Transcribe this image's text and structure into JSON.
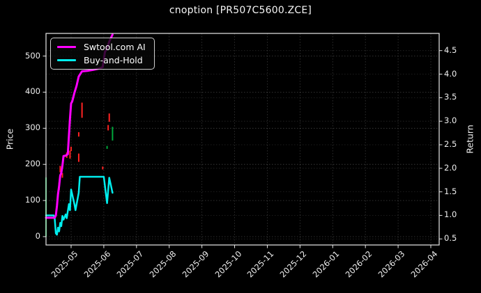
{
  "window": {
    "title": "cnoption [PR507C5600.ZCE]"
  },
  "chart_data": {
    "type": "line",
    "title": "cnoption [PR507C5600.ZCE]",
    "background_color": "#000000",
    "text_color": "#f2f2f2",
    "grid": true,
    "legend_position": "upper-left",
    "x_axis": {
      "tick_labels": [
        "2025-05",
        "2025-06",
        "2025-07",
        "2025-08",
        "2025-09",
        "2025-10",
        "2025-11",
        "2025-12",
        "2026-01",
        "2026-02",
        "2026-03",
        "2026-04"
      ],
      "tick_rotation_deg": 45
    },
    "left_axis": {
      "label": "Price",
      "ticks": [
        0,
        100,
        200,
        300,
        400,
        500
      ],
      "range": [
        -23,
        563
      ]
    },
    "right_axis": {
      "label": "Return",
      "tick_labels": [
        "0.5",
        "1.0",
        "1.5",
        "2.0",
        "2.5",
        "3.0",
        "3.5",
        "4.0",
        "4.5"
      ],
      "range": [
        0.37,
        4.87
      ]
    },
    "series": [
      {
        "name": "Swtool.com AI",
        "color": "#ff00ff",
        "axis": "return",
        "line_width": 3,
        "points": [
          [
            "2025-04-08",
            0.95
          ],
          [
            "2025-04-16",
            0.95
          ],
          [
            "2025-04-17",
            1.0
          ],
          [
            "2025-04-18",
            1.2
          ],
          [
            "2025-04-19",
            1.45
          ],
          [
            "2025-04-20",
            1.62
          ],
          [
            "2025-04-21",
            1.85
          ],
          [
            "2025-04-22",
            1.9
          ],
          [
            "2025-04-23",
            2.05
          ],
          [
            "2025-04-24",
            2.26
          ],
          [
            "2025-04-26",
            2.27
          ],
          [
            "2025-04-28",
            2.3
          ],
          [
            "2025-04-29",
            2.7
          ],
          [
            "2025-04-30",
            3.06
          ],
          [
            "2025-05-01",
            3.38
          ],
          [
            "2025-05-02",
            3.42
          ],
          [
            "2025-05-04",
            3.6
          ],
          [
            "2025-05-06",
            3.75
          ],
          [
            "2025-05-08",
            3.95
          ],
          [
            "2025-05-11",
            4.06
          ],
          [
            "2025-05-16",
            4.07
          ],
          [
            "2025-05-21",
            4.09
          ],
          [
            "2025-05-27",
            4.12
          ],
          [
            "2025-05-30",
            4.15
          ],
          [
            "2025-06-02",
            4.47
          ],
          [
            "2025-06-04",
            4.55
          ],
          [
            "2025-06-06",
            4.69
          ],
          [
            "2025-06-09",
            4.84
          ]
        ]
      },
      {
        "name": "Buy-and-Hold",
        "color": "#00eeee",
        "axis": "return",
        "line_width": 2.5,
        "points": [
          [
            "2025-04-08",
            1.0
          ],
          [
            "2025-04-15",
            1.0
          ],
          [
            "2025-04-16",
            0.93
          ],
          [
            "2025-04-17",
            0.62
          ],
          [
            "2025-04-18",
            0.59
          ],
          [
            "2025-04-19",
            0.74
          ],
          [
            "2025-04-20",
            0.66
          ],
          [
            "2025-04-21",
            0.84
          ],
          [
            "2025-04-22",
            0.77
          ],
          [
            "2025-04-23",
            0.99
          ],
          [
            "2025-04-24",
            0.91
          ],
          [
            "2025-04-26",
            1.02
          ],
          [
            "2025-04-27",
            0.94
          ],
          [
            "2025-04-29",
            1.24
          ],
          [
            "2025-04-30",
            1.11
          ],
          [
            "2025-05-01",
            1.55
          ],
          [
            "2025-05-04",
            1.24
          ],
          [
            "2025-05-05",
            1.11
          ],
          [
            "2025-05-08",
            1.48
          ],
          [
            "2025-05-09",
            1.82
          ],
          [
            "2025-06-01",
            1.82
          ],
          [
            "2025-06-04",
            1.26
          ],
          [
            "2025-06-06",
            1.8
          ],
          [
            "2025-06-09",
            1.48
          ]
        ]
      }
    ],
    "candlesticks": {
      "axis": "price",
      "up_color": "#00a83c",
      "down_color": "#ff2222",
      "bars": [
        {
          "date": "2025-04-08",
          "low": 0,
          "high": 164,
          "dir": "up"
        },
        {
          "date": "2025-04-20",
          "low": 129,
          "high": 150,
          "dir": "down"
        },
        {
          "date": "2025-04-21",
          "low": 178,
          "high": 196,
          "dir": "down"
        },
        {
          "date": "2025-04-23",
          "low": 163,
          "high": 176,
          "dir": "down"
        },
        {
          "date": "2025-04-27",
          "low": 218,
          "high": 233,
          "dir": "down"
        },
        {
          "date": "2025-04-30",
          "low": 216,
          "high": 238,
          "dir": "down"
        },
        {
          "date": "2025-05-01",
          "low": 237,
          "high": 249,
          "dir": "down"
        },
        {
          "date": "2025-05-08",
          "low": 207,
          "high": 230,
          "dir": "down"
        },
        {
          "date": "2025-05-08",
          "low": 277,
          "high": 289,
          "dir": "down"
        },
        {
          "date": "2025-05-11",
          "low": 329,
          "high": 371,
          "dir": "down"
        },
        {
          "date": "2025-05-30",
          "low": 186,
          "high": 194,
          "dir": "down"
        },
        {
          "date": "2025-06-04",
          "low": 243,
          "high": 251,
          "dir": "up"
        },
        {
          "date": "2025-06-05",
          "low": 294,
          "high": 309,
          "dir": "down"
        },
        {
          "date": "2025-06-06",
          "low": 318,
          "high": 341,
          "dir": "down"
        },
        {
          "date": "2025-06-09",
          "low": 266,
          "high": 304,
          "dir": "up"
        }
      ]
    }
  }
}
